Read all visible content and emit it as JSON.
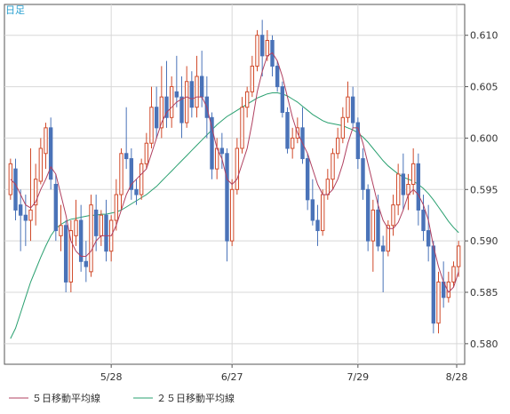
{
  "chart_data": {
    "type": "candlestick",
    "timeframe_label": "日足",
    "x_tick_labels": [
      "5/28",
      "6/27",
      "7/29",
      "8/28"
    ],
    "y_ticks": [
      0.58,
      0.585,
      0.59,
      0.595,
      0.6,
      0.605,
      0.61
    ],
    "ylim": [
      0.578,
      0.613
    ],
    "grid": true,
    "y_axis_side": "right",
    "colors": {
      "up": "#d04a2a",
      "down": "#4a73b8",
      "ma5": "#b04060",
      "ma25": "#2aa070",
      "grid": "#d8d8d8",
      "axis": "#555555"
    },
    "legend": [
      {
        "key": "ma5",
        "label": "５日移動平均線",
        "color": "#b04060"
      },
      {
        "key": "ma25",
        "label": "２５日移動平均線",
        "color": "#2aa070"
      }
    ],
    "candles": [
      [
        0.5945,
        0.598,
        0.594,
        0.5975
      ],
      [
        0.597,
        0.598,
        0.592,
        0.593
      ],
      [
        0.5935,
        0.595,
        0.589,
        0.5925
      ],
      [
        0.5925,
        0.5945,
        0.5895,
        0.592
      ],
      [
        0.592,
        0.599,
        0.59,
        0.593
      ],
      [
        0.5935,
        0.5975,
        0.5915,
        0.596
      ],
      [
        0.5958,
        0.6,
        0.5955,
        0.599
      ],
      [
        0.5985,
        0.6015,
        0.597,
        0.601
      ],
      [
        0.601,
        0.602,
        0.595,
        0.596
      ],
      [
        0.5955,
        0.5965,
        0.59,
        0.591
      ],
      [
        0.5905,
        0.5935,
        0.589,
        0.5915
      ],
      [
        0.5915,
        0.592,
        0.585,
        0.586
      ],
      [
        0.586,
        0.592,
        0.585,
        0.591
      ],
      [
        0.5905,
        0.594,
        0.5895,
        0.592
      ],
      [
        0.592,
        0.5935,
        0.587,
        0.588
      ],
      [
        0.588,
        0.59,
        0.586,
        0.5875
      ],
      [
        0.587,
        0.5945,
        0.5865,
        0.5935
      ],
      [
        0.593,
        0.5945,
        0.589,
        0.5905
      ],
      [
        0.5905,
        0.593,
        0.5895,
        0.5925
      ],
      [
        0.5925,
        0.594,
        0.588,
        0.589
      ],
      [
        0.589,
        0.5925,
        0.588,
        0.592
      ],
      [
        0.592,
        0.596,
        0.591,
        0.5945
      ],
      [
        0.5945,
        0.599,
        0.593,
        0.5985
      ],
      [
        0.5985,
        0.603,
        0.597,
        0.598
      ],
      [
        0.598,
        0.599,
        0.594,
        0.595
      ],
      [
        0.595,
        0.596,
        0.5935,
        0.5945
      ],
      [
        0.5945,
        0.598,
        0.594,
        0.5975
      ],
      [
        0.5975,
        0.6005,
        0.597,
        0.5995
      ],
      [
        0.5995,
        0.605,
        0.599,
        0.603
      ],
      [
        0.603,
        0.605,
        0.6,
        0.601
      ],
      [
        0.601,
        0.607,
        0.6,
        0.604
      ],
      [
        0.604,
        0.6075,
        0.601,
        0.602
      ],
      [
        0.602,
        0.606,
        0.601,
        0.605
      ],
      [
        0.6045,
        0.608,
        0.603,
        0.604
      ],
      [
        0.604,
        0.606,
        0.6,
        0.6015
      ],
      [
        0.6015,
        0.607,
        0.601,
        0.6055
      ],
      [
        0.6055,
        0.6065,
        0.602,
        0.603
      ],
      [
        0.603,
        0.608,
        0.602,
        0.606
      ],
      [
        0.606,
        0.6085,
        0.603,
        0.604
      ],
      [
        0.604,
        0.606,
        0.6,
        0.602
      ],
      [
        0.602,
        0.6025,
        0.596,
        0.597
      ],
      [
        0.597,
        0.6,
        0.596,
        0.599
      ],
      [
        0.599,
        0.6005,
        0.597,
        0.5985
      ],
      [
        0.5985,
        0.599,
        0.588,
        0.59
      ],
      [
        0.59,
        0.596,
        0.5895,
        0.595
      ],
      [
        0.595,
        0.6,
        0.5945,
        0.599
      ],
      [
        0.599,
        0.604,
        0.5985,
        0.603
      ],
      [
        0.603,
        0.605,
        0.602,
        0.6045
      ],
      [
        0.6045,
        0.608,
        0.604,
        0.607
      ],
      [
        0.607,
        0.6105,
        0.6065,
        0.61
      ],
      [
        0.61,
        0.6115,
        0.606,
        0.608
      ],
      [
        0.608,
        0.6105,
        0.6075,
        0.6095
      ],
      [
        0.6095,
        0.61,
        0.606,
        0.607
      ],
      [
        0.607,
        0.6075,
        0.6045,
        0.605
      ],
      [
        0.605,
        0.6055,
        0.602,
        0.6025
      ],
      [
        0.6025,
        0.603,
        0.5985,
        0.599
      ],
      [
        0.599,
        0.601,
        0.598,
        0.6
      ],
      [
        0.6,
        0.602,
        0.5995,
        0.601
      ],
      [
        0.601,
        0.603,
        0.5975,
        0.598
      ],
      [
        0.598,
        0.5985,
        0.593,
        0.594
      ],
      [
        0.594,
        0.596,
        0.5915,
        0.592
      ],
      [
        0.592,
        0.5935,
        0.5895,
        0.591
      ],
      [
        0.591,
        0.595,
        0.5905,
        0.5945
      ],
      [
        0.5945,
        0.597,
        0.594,
        0.596
      ],
      [
        0.596,
        0.599,
        0.595,
        0.5985
      ],
      [
        0.5985,
        0.601,
        0.598,
        0.6
      ],
      [
        0.6,
        0.603,
        0.5995,
        0.602
      ],
      [
        0.602,
        0.6055,
        0.6015,
        0.604
      ],
      [
        0.604,
        0.605,
        0.601,
        0.6015
      ],
      [
        0.6015,
        0.602,
        0.597,
        0.598
      ],
      [
        0.598,
        0.599,
        0.594,
        0.595
      ],
      [
        0.595,
        0.5955,
        0.589,
        0.59
      ],
      [
        0.59,
        0.594,
        0.587,
        0.593
      ],
      [
        0.593,
        0.5945,
        0.589,
        0.5895
      ],
      [
        0.5895,
        0.5905,
        0.585,
        0.589
      ],
      [
        0.589,
        0.592,
        0.5885,
        0.5915
      ],
      [
        0.5915,
        0.5945,
        0.5905,
        0.5935
      ],
      [
        0.5935,
        0.5975,
        0.5925,
        0.5965
      ],
      [
        0.5965,
        0.5985,
        0.593,
        0.5945
      ],
      [
        0.5945,
        0.5965,
        0.593,
        0.5955
      ],
      [
        0.5955,
        0.599,
        0.5945,
        0.5975
      ],
      [
        0.5975,
        0.5985,
        0.5915,
        0.593
      ],
      [
        0.593,
        0.5945,
        0.59,
        0.591
      ],
      [
        0.591,
        0.5935,
        0.588,
        0.5895
      ],
      [
        0.5895,
        0.59,
        0.581,
        0.582
      ],
      [
        0.582,
        0.587,
        0.581,
        0.586
      ],
      [
        0.586,
        0.588,
        0.5835,
        0.5845
      ],
      [
        0.5845,
        0.587,
        0.584,
        0.586
      ],
      [
        0.586,
        0.588,
        0.5855,
        0.5875
      ],
      [
        0.5875,
        0.59,
        0.5865,
        0.5895
      ]
    ],
    "ma5": [
      0.596,
      0.5955,
      0.5945,
      0.5935,
      0.5932,
      0.5938,
      0.595,
      0.596,
      0.5972,
      0.5965,
      0.5945,
      0.5925,
      0.59,
      0.589,
      0.5885,
      0.5885,
      0.589,
      0.59,
      0.5905,
      0.5905,
      0.5905,
      0.5915,
      0.593,
      0.5945,
      0.5955,
      0.596,
      0.5965,
      0.597,
      0.5985,
      0.6,
      0.6015,
      0.6025,
      0.603,
      0.6035,
      0.6038,
      0.604,
      0.6038,
      0.604,
      0.604,
      0.603,
      0.601,
      0.599,
      0.598,
      0.596,
      0.5955,
      0.596,
      0.5975,
      0.599,
      0.6015,
      0.6045,
      0.6065,
      0.608,
      0.6083,
      0.6075,
      0.606,
      0.604,
      0.602,
      0.6005,
      0.5995,
      0.5985,
      0.597,
      0.5955,
      0.5945,
      0.5945,
      0.595,
      0.596,
      0.5975,
      0.5995,
      0.601,
      0.601,
      0.5995,
      0.5975,
      0.5955,
      0.5935,
      0.592,
      0.5912,
      0.5912,
      0.5918,
      0.593,
      0.5945,
      0.595,
      0.5945,
      0.5935,
      0.592,
      0.5895,
      0.5875,
      0.586,
      0.585,
      0.5855,
      0.587
    ],
    "ma25": [
      0.5805,
      0.5815,
      0.583,
      0.5845,
      0.586,
      0.5872,
      0.5884,
      0.5895,
      0.5905,
      0.5912,
      0.5916,
      0.5919,
      0.5921,
      0.5922,
      0.5923,
      0.5924,
      0.5925,
      0.5925,
      0.5926,
      0.5926,
      0.5927,
      0.5928,
      0.593,
      0.5933,
      0.5936,
      0.5939,
      0.5942,
      0.5945,
      0.5949,
      0.5953,
      0.5958,
      0.5963,
      0.5968,
      0.5973,
      0.5978,
      0.5983,
      0.5988,
      0.5993,
      0.5998,
      0.6003,
      0.6008,
      0.6013,
      0.6017,
      0.6021,
      0.6024,
      0.6027,
      0.603,
      0.6033,
      0.6036,
      0.6039,
      0.6041,
      0.6043,
      0.6044,
      0.6044,
      0.6043,
      0.6041,
      0.6038,
      0.6035,
      0.6031,
      0.6027,
      0.6023,
      0.602,
      0.6017,
      0.6015,
      0.6014,
      0.6013,
      0.6012,
      0.601,
      0.6008,
      0.6005,
      0.6001,
      0.5996,
      0.599,
      0.5984,
      0.5978,
      0.5973,
      0.5969,
      0.5965,
      0.5962,
      0.596,
      0.5958,
      0.5955,
      0.5951,
      0.5946,
      0.594,
      0.5933,
      0.5926,
      0.5919,
      0.5913,
      0.5908
    ]
  }
}
